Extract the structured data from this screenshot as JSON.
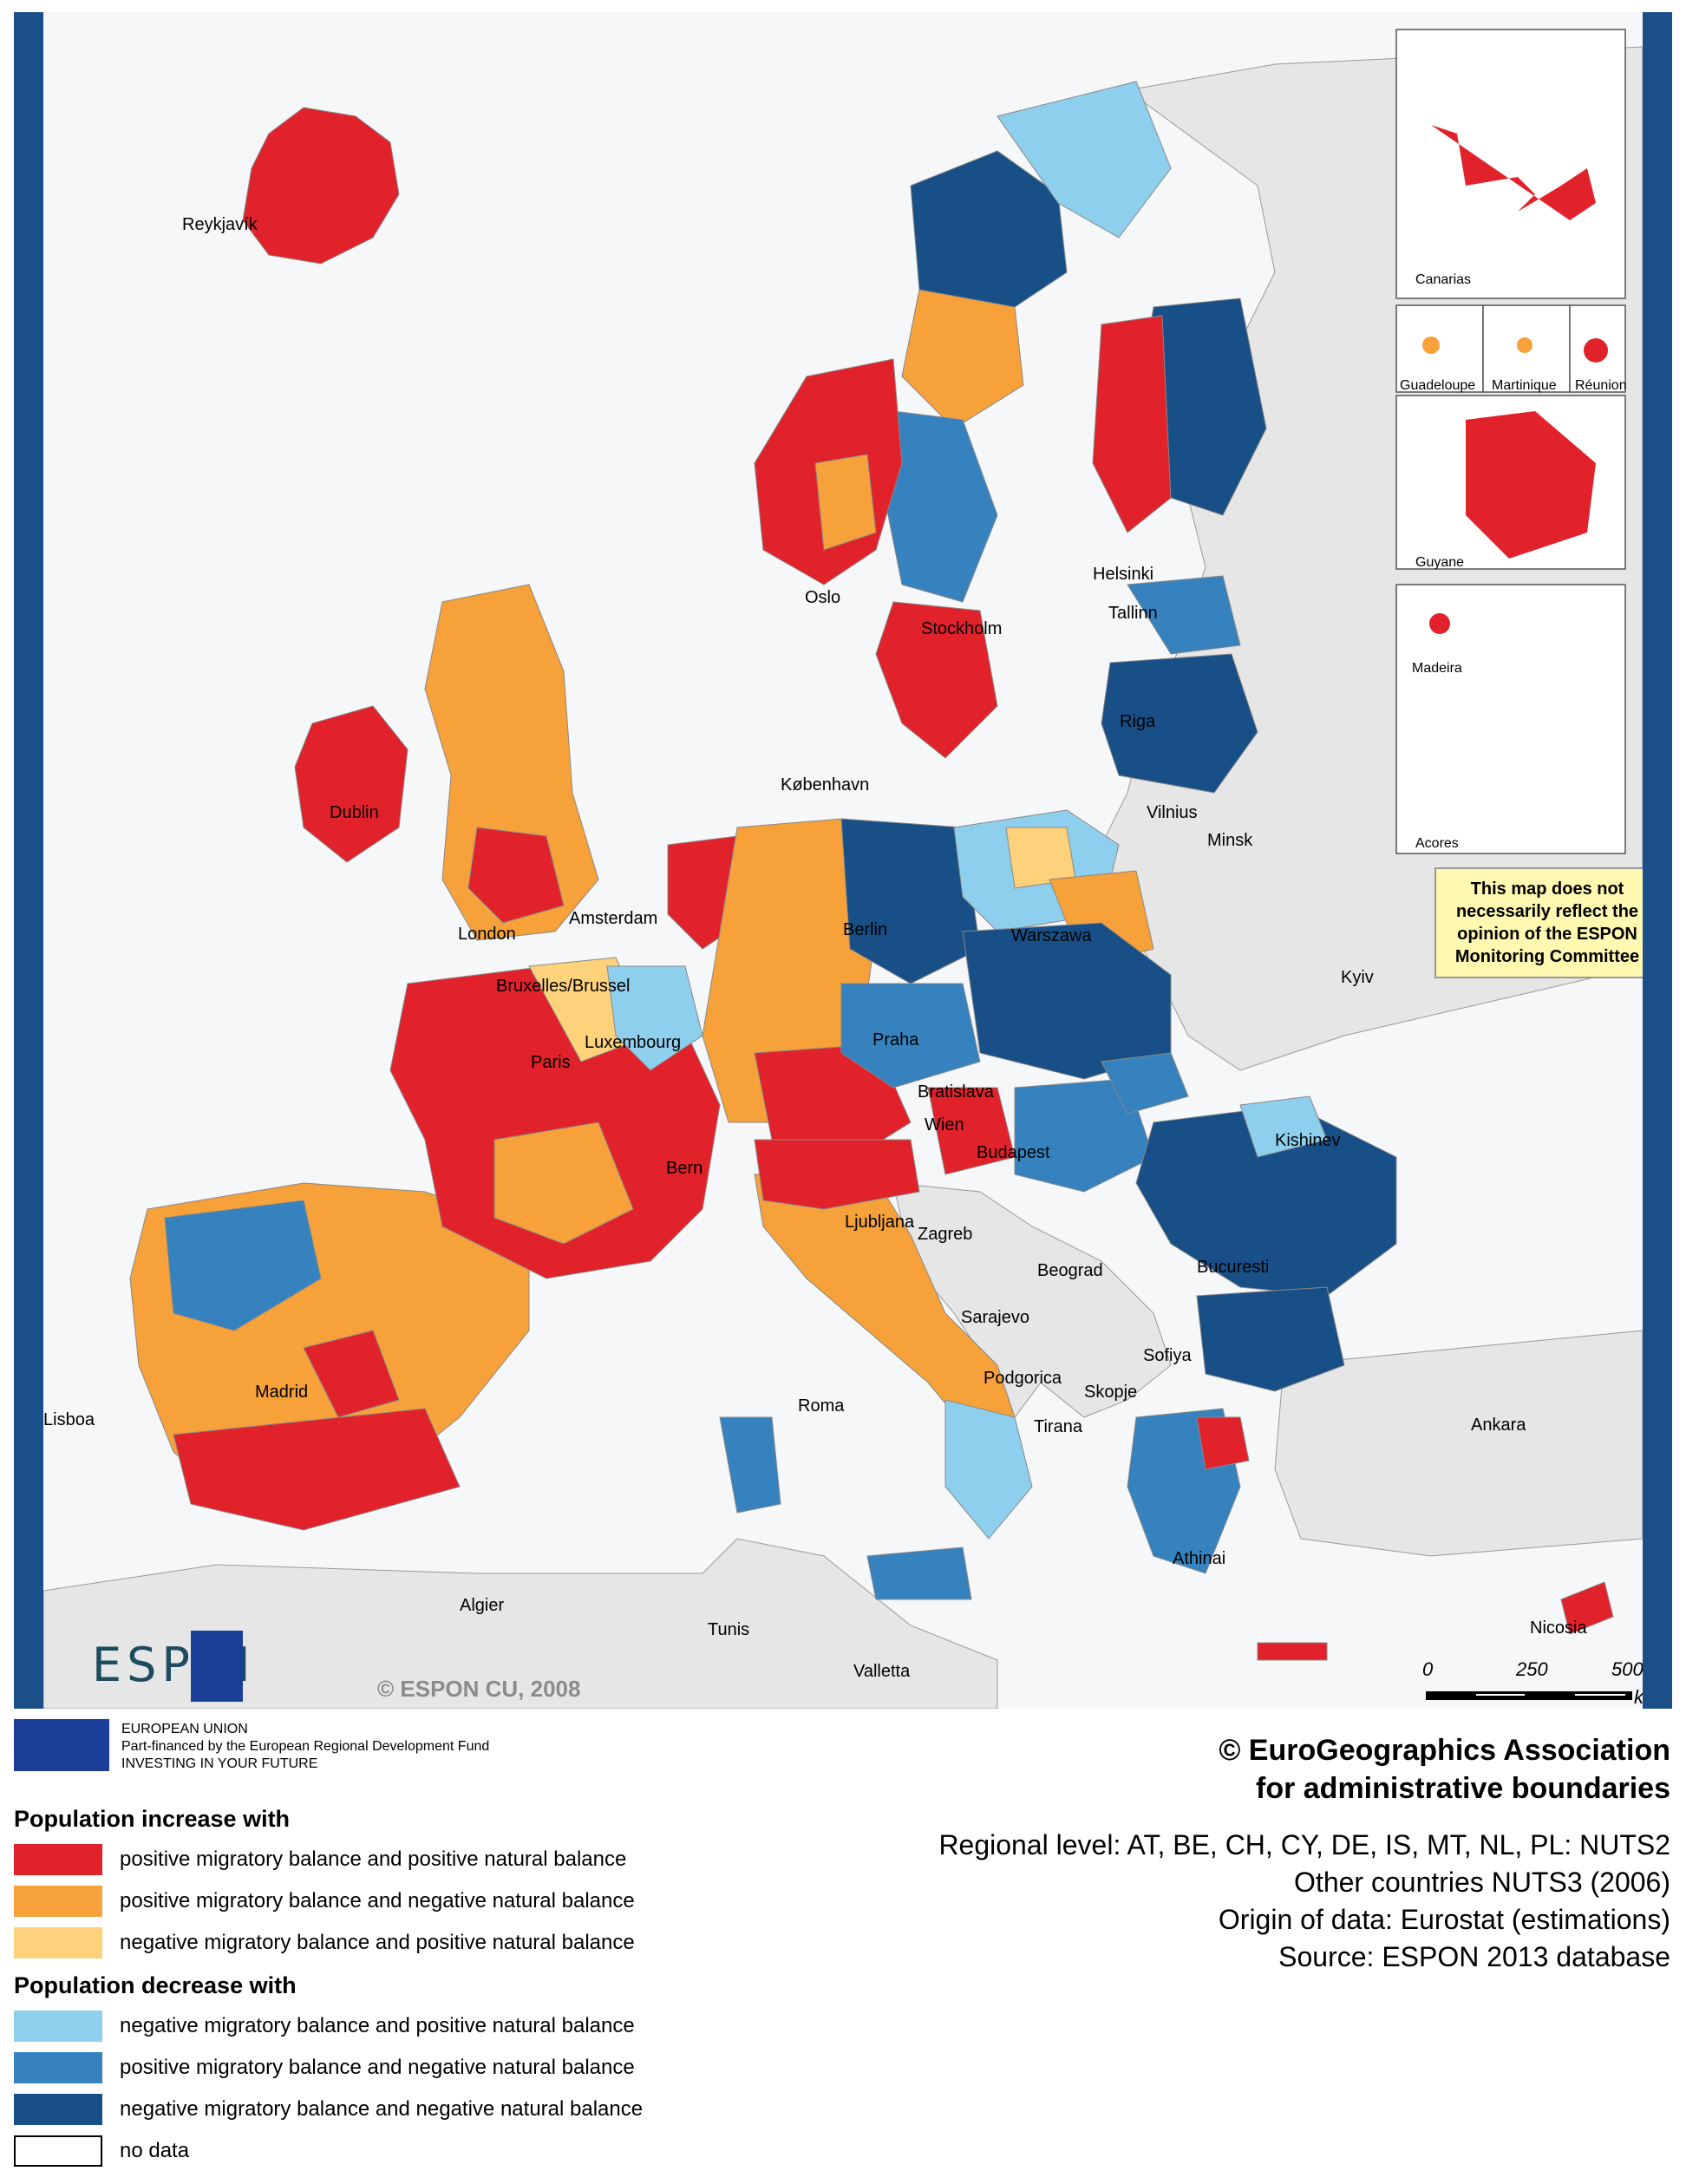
{
  "colors": {
    "frame": "#1b4f8a",
    "sea": "#f6f7f9",
    "non_espon_land": "#e6e6e6",
    "inc_pos_pos": "#e1222b",
    "inc_pos_neg": "#f6a13a",
    "inc_neg_pos": "#fdd27a",
    "dec_neg_pos": "#8fcfee",
    "dec_pos_neg": "#3582be",
    "dec_neg_neg": "#184f87",
    "no_data": "#ffffff"
  },
  "cities": [
    {
      "name": "Reykjavík"
    },
    {
      "name": "Helsinki"
    },
    {
      "name": "Tallinn"
    },
    {
      "name": "Oslo"
    },
    {
      "name": "Stockholm"
    },
    {
      "name": "Riga"
    },
    {
      "name": "København"
    },
    {
      "name": "Vilnius"
    },
    {
      "name": "Minsk"
    },
    {
      "name": "Dublin"
    },
    {
      "name": "Amsterdam"
    },
    {
      "name": "Berlin"
    },
    {
      "name": "Warszawa"
    },
    {
      "name": "London"
    },
    {
      "name": "Bruxelles/Brussel"
    },
    {
      "name": "Luxembourg"
    },
    {
      "name": "Kyiv"
    },
    {
      "name": "Paris"
    },
    {
      "name": "Praha"
    },
    {
      "name": "Bratislava"
    },
    {
      "name": "Wien"
    },
    {
      "name": "Kishinev"
    },
    {
      "name": "Bern"
    },
    {
      "name": "Budapest"
    },
    {
      "name": "Ljubljana"
    },
    {
      "name": "Zagreb"
    },
    {
      "name": "Bucuresti"
    },
    {
      "name": "Beograd"
    },
    {
      "name": "Sarajevo"
    },
    {
      "name": "Sofiya"
    },
    {
      "name": "Madrid"
    },
    {
      "name": "Podgorica"
    },
    {
      "name": "Skopje"
    },
    {
      "name": "Lisboa"
    },
    {
      "name": "Roma"
    },
    {
      "name": "Tirana"
    },
    {
      "name": "Ankara"
    },
    {
      "name": "Athinai"
    },
    {
      "name": "Algier"
    },
    {
      "name": "Tunis"
    },
    {
      "name": "Nicosia"
    },
    {
      "name": "Valletta"
    }
  ],
  "insets": {
    "canarias": "Canarias",
    "guadeloupe": "Guadeloupe",
    "martinique": "Martinique",
    "reunion": "Réunion",
    "guyane": "Guyane",
    "madeira": "Madeira",
    "acores": "Acores"
  },
  "disclaimer": "This map does not necessarily reflect the opinion of the ESPON Monitoring Committee",
  "espon_copyright": "© ESPON CU, 2008",
  "espon_logo": "ESP  N",
  "scale": {
    "labels": [
      "0",
      "250",
      "500"
    ],
    "unit": "km"
  },
  "eu_text": {
    "line1": "EUROPEAN UNION",
    "line2": "Part-financed by the European Regional Development Fund",
    "line3": "INVESTING IN YOUR FUTURE"
  },
  "legend": {
    "increase_heading": "Population increase with",
    "decrease_heading": "Population decrease with",
    "items": [
      {
        "label": "positive migratory balance and positive natural balance",
        "color": "#e1222b"
      },
      {
        "label": "positive migratory balance and negative natural balance",
        "color": "#f6a13a"
      },
      {
        "label": "negative migratory balance and positive natural balance",
        "color": "#fdd27a"
      },
      {
        "label": "negative migratory balance and positive natural balance",
        "color": "#8fcfee"
      },
      {
        "label": "positive migratory balance and negative natural balance",
        "color": "#3582be"
      },
      {
        "label": "negative migratory balance and negative natural balance",
        "color": "#184f87"
      },
      {
        "label": "no data",
        "color": "#ffffff"
      }
    ]
  },
  "copyright": {
    "line1": "© EuroGeographics Association",
    "line2": "for administrative boundaries"
  },
  "meta": {
    "line1": "Regional level: AT, BE, CH, CY, DE, IS, MT, NL, PL: NUTS2",
    "line2": "Other countries NUTS3 (2006)",
    "line3": "Origin of data: Eurostat (estimations)",
    "line4": "Source: ESPON 2013 database"
  }
}
